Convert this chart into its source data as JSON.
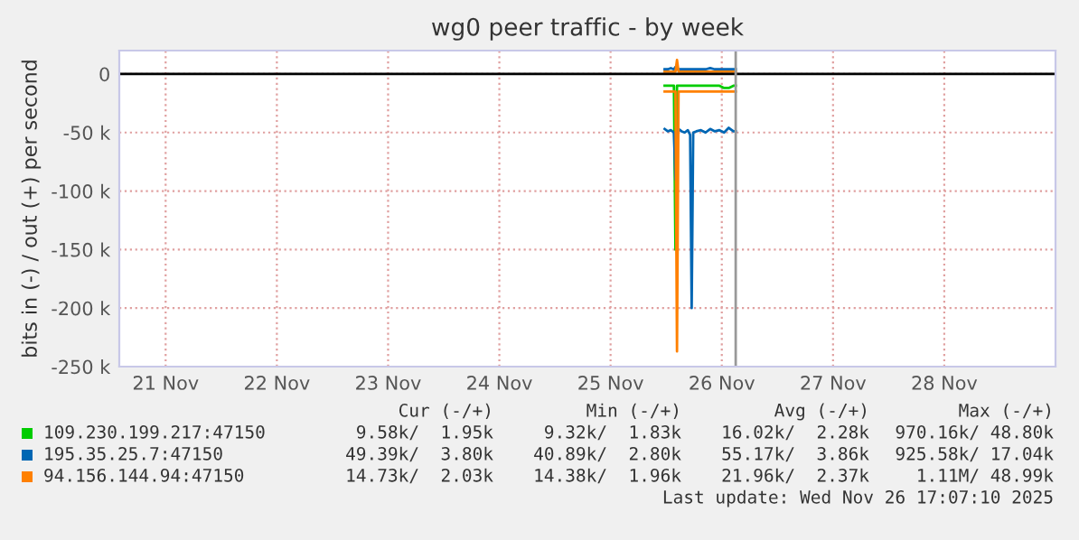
{
  "chart_data": {
    "type": "line",
    "title": "wg0 peer traffic - by week",
    "ylabel": "bits in (-) / out (+) per second",
    "x": [
      "2025-11-25T23:40",
      "2025-11-26T00:20",
      "2025-11-26T01:00",
      "2025-11-26T01:40",
      "2025-11-26T02:00",
      "2025-11-26T02:20",
      "2025-11-26T02:40",
      "2025-11-26T03:20",
      "2025-11-26T04:00",
      "2025-11-26T04:40",
      "2025-11-26T05:10",
      "2025-11-26T05:30",
      "2025-11-26T05:50",
      "2025-11-26T06:30",
      "2025-11-26T07:30",
      "2025-11-26T08:30",
      "2025-11-26T09:30",
      "2025-11-26T10:30",
      "2025-11-26T11:30",
      "2025-11-26T12:30",
      "2025-11-26T13:30",
      "2025-11-26T14:30",
      "2025-11-26T15:00"
    ],
    "series": [
      {
        "name": "109.230.199.217:47150",
        "color": "#00cc00",
        "values": [
          -10000,
          -10000,
          -10000,
          -10000,
          -150000,
          -10000,
          -10000,
          -10000,
          -10000,
          -10000,
          -10000,
          -10000,
          -10000,
          -10000,
          -10000,
          -10000,
          -10000,
          -10000,
          -10000,
          -12000,
          -12000,
          -10000,
          -10000
        ]
      },
      {
        "name": "195.35.25.7:47150",
        "color": "#0066b3",
        "values": [
          -47000,
          -49000,
          -48000,
          -50000,
          -90000,
          -48000,
          -47000,
          -49000,
          -50000,
          -48000,
          -52000,
          -200000,
          -50000,
          -49000,
          -48000,
          -50000,
          -47000,
          -49000,
          -48000,
          -50000,
          -46000,
          -49000,
          -49000
        ]
      },
      {
        "color": "#0066b3",
        "values": [
          4000,
          4000,
          5000,
          4000,
          6000,
          4000,
          4000,
          4000,
          4000,
          4000,
          4000,
          4000,
          4000,
          4000,
          4000,
          4000,
          5000,
          4000,
          4000,
          4000,
          4000,
          4000,
          4000
        ]
      },
      {
        "name": "94.156.144.94:47150",
        "color": "#ff8000",
        "values": [
          -15000,
          -15000,
          -15000,
          -15000,
          -15000,
          -237000,
          -15000,
          -15000,
          -15000,
          -15000,
          -15000,
          -15000,
          -15000,
          -15000,
          -15000,
          -15000,
          -15000,
          -15000,
          -15000,
          -15000,
          -15000,
          -15000,
          -15000
        ]
      },
      {
        "color": "#ff8000",
        "values": [
          2000,
          2000,
          2000,
          2000,
          2000,
          12000,
          2000,
          2000,
          2000,
          2000,
          2000,
          2000,
          2000,
          2000,
          2000,
          2000,
          2000,
          2000,
          2000,
          2000,
          2000,
          2000,
          2000
        ]
      }
    ],
    "xlim": [
      "2025-11-21T02:00",
      "2025-11-29T12:00"
    ],
    "xticks": [
      {
        "value": "2025-11-21T12:00",
        "label": "21 Nov"
      },
      {
        "value": "2025-11-22T12:00",
        "label": "22 Nov"
      },
      {
        "value": "2025-11-23T12:00",
        "label": "23 Nov"
      },
      {
        "value": "2025-11-24T12:00",
        "label": "24 Nov"
      },
      {
        "value": "2025-11-25T12:00",
        "label": "25 Nov"
      },
      {
        "value": "2025-11-26T12:00",
        "label": "26 Nov"
      },
      {
        "value": "2025-11-27T12:00",
        "label": "27 Nov"
      },
      {
        "value": "2025-11-28T12:00",
        "label": "28 Nov"
      }
    ],
    "ylim": [
      -250000,
      20000
    ],
    "yticks": [
      {
        "value": 0,
        "label": "0"
      },
      {
        "value": -50000,
        "label": "-50 k"
      },
      {
        "value": -100000,
        "label": "-100 k"
      },
      {
        "value": -150000,
        "label": "-150 k"
      },
      {
        "value": -200000,
        "label": "-200 k"
      },
      {
        "value": -250000,
        "label": "-250 k"
      }
    ],
    "ref_lines": [
      {
        "axis": "y",
        "value": 0,
        "color": "#000000"
      },
      {
        "axis": "x",
        "value": "2025-11-26T15:00",
        "color": "#999999"
      }
    ],
    "grid": true,
    "legend": "bottom",
    "annotations": [
      "Cur (-/+)",
      "Min (-/+)",
      "Avg (-/+)",
      "Max (-/+)",
      "9.58k/  1.95k",
      "9.32k/  1.83k",
      "16.02k/  2.28k",
      "970.16k/ 48.80k",
      "49.39k/  3.80k",
      "40.89k/  2.80k",
      "55.17k/  3.86k",
      "925.58k/ 17.04k",
      "14.73k/  2.03k",
      "14.38k/  1.96k",
      "21.96k/  2.37k",
      "1.11M/ 48.99k",
      "Last update: Wed Nov 26 17:07:10 2025"
    ]
  }
}
